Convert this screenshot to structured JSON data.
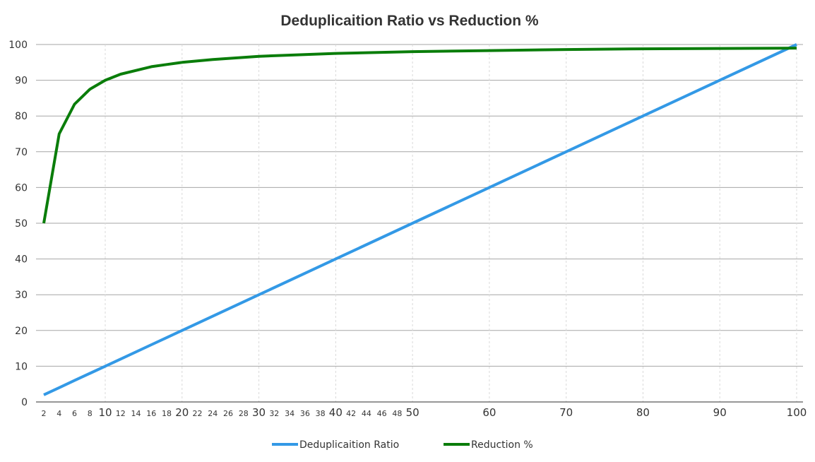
{
  "chart_data": {
    "type": "line",
    "title": "Deduplicaition Ratio vs Reduction %",
    "xlabel": "",
    "ylabel": "",
    "xlim": [
      2,
      100
    ],
    "ylim": [
      0,
      100
    ],
    "grid": true,
    "legend_position": "bottom",
    "y_ticks": [
      "0",
      "10",
      "20",
      "30",
      "40",
      "50",
      "60",
      "70",
      "80",
      "90",
      "100"
    ],
    "x_ticks_minor": [
      "2",
      "4",
      "6",
      "8",
      "12",
      "14",
      "16",
      "18",
      "22",
      "24",
      "26",
      "28",
      "32",
      "34",
      "36",
      "38",
      "42",
      "44",
      "46",
      "48"
    ],
    "x_ticks_major": [
      "10",
      "20",
      "30",
      "40",
      "50",
      "60",
      "70",
      "80",
      "90",
      "100"
    ],
    "x": [
      2,
      4,
      6,
      8,
      10,
      12,
      16,
      18,
      20,
      24,
      30,
      40,
      50,
      60,
      70,
      80,
      90,
      100
    ],
    "series": [
      {
        "name": "Deduplicaition Ratio",
        "color": "#3399e6",
        "values": [
          2,
          4,
          6,
          8,
          10,
          12,
          16,
          18,
          20,
          24,
          30,
          40,
          50,
          60,
          70,
          80,
          90,
          100
        ]
      },
      {
        "name": "Reduction %",
        "color": "#0a7d0a",
        "values": [
          50,
          75,
          83.3,
          87.5,
          90,
          91.7,
          93.8,
          94.4,
          95,
          95.8,
          96.7,
          97.5,
          98,
          98.3,
          98.6,
          98.8,
          98.9,
          99
        ]
      }
    ]
  }
}
